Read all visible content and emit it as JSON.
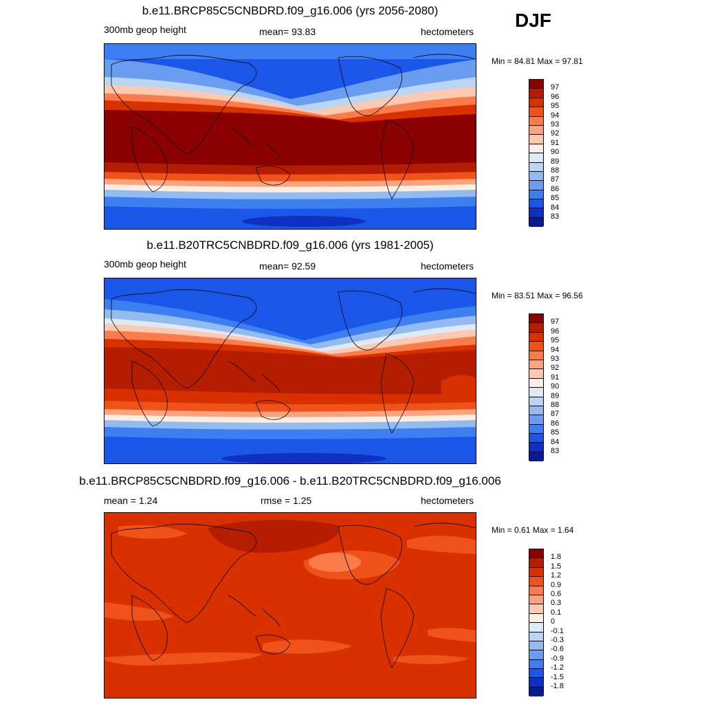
{
  "season": "DJF",
  "panels": [
    {
      "title": "b.e11.BRCP85C5CNBDRD.f09_g16.006 (yrs 2056-2080)",
      "left_label": "300mb geop height",
      "center_label": "mean=  93.83",
      "right_label": "hectometers",
      "minmax": "Min =  84.81 Max =  97.81",
      "colorbar": {
        "labels": [
          "97",
          "96",
          "95",
          "94",
          "93",
          "92",
          "91",
          "90",
          "89",
          "88",
          "87",
          "86",
          "85",
          "84",
          "83"
        ],
        "colors": [
          "#8b0000",
          "#b51d00",
          "#d93000",
          "#f0531a",
          "#fb7b4b",
          "#fca47e",
          "#fdcab1",
          "#fdeee3",
          "#deebf7",
          "#bad6f3",
          "#93bbf0",
          "#6a9df0",
          "#3d7ef0",
          "#1a57e8",
          "#0f30c0",
          "#0a1a90"
        ]
      }
    },
    {
      "title": "b.e11.B20TRC5CNBDRD.f09_g16.006 (yrs 1981-2005)",
      "left_label": "300mb geop height",
      "center_label": "mean=  92.59",
      "right_label": "hectometers",
      "minmax": "Min =  83.51 Max =  96.56",
      "colorbar": {
        "labels": [
          "97",
          "96",
          "95",
          "94",
          "93",
          "92",
          "91",
          "90",
          "89",
          "88",
          "87",
          "86",
          "85",
          "84",
          "83"
        ],
        "colors": [
          "#8b0000",
          "#b51d00",
          "#d93000",
          "#f0531a",
          "#fb7b4b",
          "#fca47e",
          "#fdcab1",
          "#fdeee3",
          "#deebf7",
          "#bad6f3",
          "#93bbf0",
          "#6a9df0",
          "#3d7ef0",
          "#1a57e8",
          "#0f30c0",
          "#0a1a90"
        ]
      }
    },
    {
      "title": "b.e11.BRCP85C5CNBDRD.f09_g16.006 - b.e11.B20TRC5CNBDRD.f09_g16.006",
      "left_label": "mean =   1.24",
      "center_label": "rmse =   1.25",
      "right_label": "hectometers",
      "minmax": "Min =   0.61 Max =   1.64",
      "colorbar": {
        "labels": [
          "1.8",
          "1.5",
          "1.2",
          "0.9",
          "0.6",
          "0.3",
          "0.1",
          "0",
          "-0.1",
          "-0.3",
          "-0.6",
          "-0.9",
          "-1.2",
          "-1.5",
          "-1.8"
        ],
        "colors": [
          "#8b0000",
          "#b51d00",
          "#d93000",
          "#f0531a",
          "#fb7b4b",
          "#fca47e",
          "#fdcab1",
          "#fdeee3",
          "#deebf7",
          "#bad6f3",
          "#93bbf0",
          "#6a9df0",
          "#3d7ef0",
          "#1a57e8",
          "#0f30c0",
          "#0a1a90"
        ]
      }
    }
  ]
}
